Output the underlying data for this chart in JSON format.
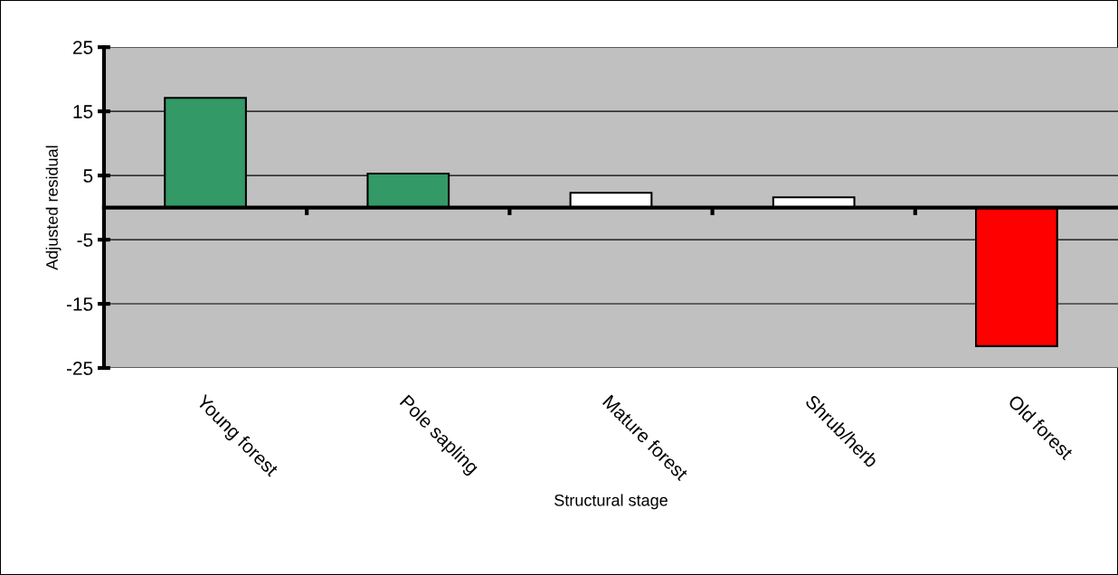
{
  "chart_data": {
    "type": "bar",
    "xlabel": "Structural stage",
    "ylabel": "Adjusted residual",
    "categories": [
      "Young forest",
      "Pole sapling",
      "Mature forest",
      "Shrub/herb",
      "Old forest"
    ],
    "values": [
      17.1,
      5.3,
      2.3,
      1.6,
      -21.6
    ],
    "colors": [
      "#339966",
      "#339966",
      "#ffffff",
      "#ffffff",
      "#ff0000"
    ],
    "ylim": [
      -25,
      25
    ],
    "yticks": [
      -25,
      -15,
      -5,
      5,
      15,
      25
    ],
    "grid": "y",
    "legend": false
  }
}
